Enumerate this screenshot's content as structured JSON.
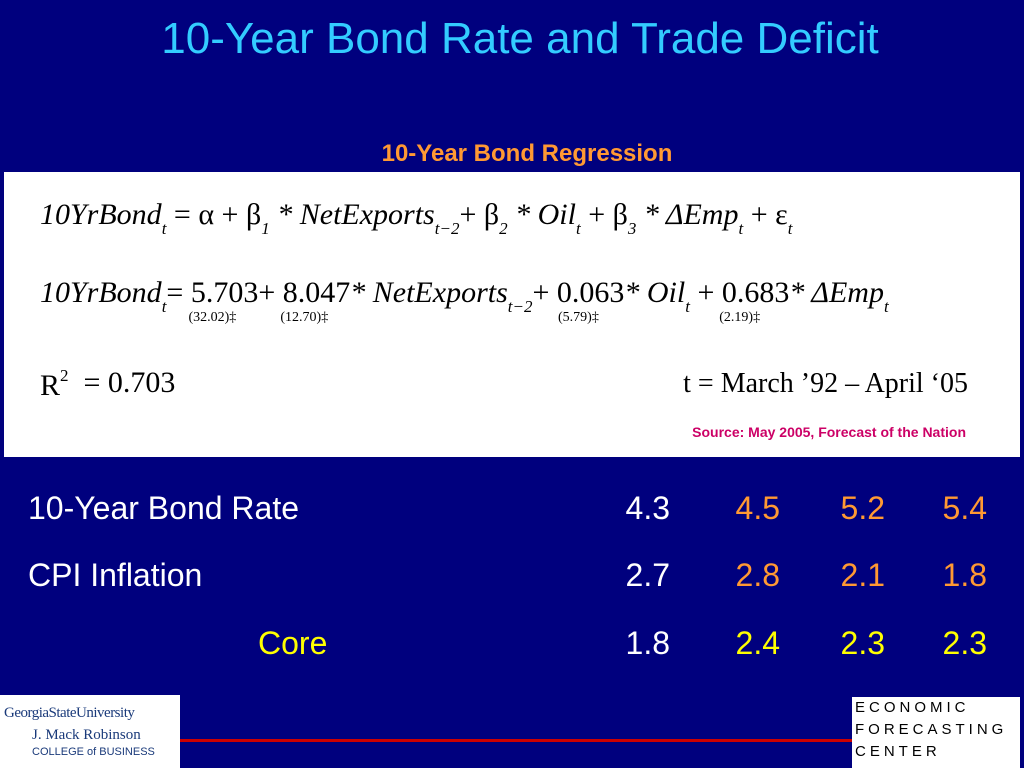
{
  "header": {
    "title": "10-Year Bond Rate and Trade Deficit",
    "subtitle": "10-Year Bond Regression"
  },
  "regression": {
    "model": [
      {
        "text": "10YrBond",
        "sub": "t"
      },
      {
        "text": " = α + β",
        "sub": "1"
      },
      {
        "text": " * NetExports",
        "sub": "t−2"
      },
      {
        "text": "+ β",
        "sub": "2"
      },
      {
        "text": " * Oil",
        "sub": "t"
      },
      {
        "text": " + β",
        "sub": "3"
      },
      {
        "text": " * ΔEmp",
        "sub": "t"
      },
      {
        "text": " + ε",
        "sub": "t"
      }
    ],
    "estimate": [
      {
        "text": "10YrBond",
        "sub": "t"
      },
      {
        "text": "= 5.703",
        "se": "(32.02)‡"
      },
      {
        "text": "+ 8.047",
        "se": "(12.70)‡"
      },
      {
        "text": "* NetExports",
        "sub": "t−2"
      },
      {
        "text": "+ 0.063",
        "se": "(5.79)‡"
      },
      {
        "text": "* Oil",
        "sub": "t"
      },
      {
        "text": " + 0.683",
        "se": "(2.19)‡"
      },
      {
        "text": "* ΔEmp",
        "sub": "t"
      }
    ],
    "r2": [
      {
        "text": "R",
        "sup": "2"
      },
      {
        "text": "  = 0.703"
      }
    ],
    "period": "t = March ’92 – April ‘05",
    "source": "Source: May 2005, Forecast of the Nation"
  },
  "table": {
    "rows": [
      {
        "label": "10-Year Bond Rate",
        "values": [
          "4.3",
          "4.5",
          "5.2",
          "5.4"
        ]
      },
      {
        "label": "CPI Inflation",
        "values": [
          "2.7",
          "2.8",
          "2.1",
          "1.8"
        ]
      },
      {
        "label": "Core",
        "values": [
          "1.8",
          "2.4",
          "2.3",
          "2.3"
        ]
      }
    ]
  },
  "footer": {
    "left_logo": [
      "GeorgiaStateUniversity",
      "J. Mack Robinson",
      "COLLEGE of BUSINESS"
    ],
    "right_logo": [
      "ECONOMIC",
      "FORECASTING",
      "CENTER"
    ]
  }
}
